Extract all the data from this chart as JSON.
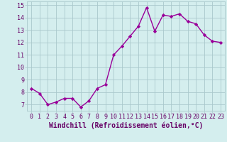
{
  "x": [
    0,
    1,
    2,
    3,
    4,
    5,
    6,
    7,
    8,
    9,
    10,
    11,
    12,
    13,
    14,
    15,
    16,
    17,
    18,
    19,
    20,
    21,
    22,
    23
  ],
  "y": [
    8.3,
    7.9,
    7.0,
    7.2,
    7.5,
    7.5,
    6.8,
    7.3,
    8.3,
    8.6,
    11.0,
    11.7,
    12.5,
    13.3,
    14.8,
    12.9,
    14.2,
    14.1,
    14.3,
    13.7,
    13.5,
    12.6,
    12.1,
    12.0
  ],
  "line_color": "#990099",
  "marker": "D",
  "marker_size": 2.2,
  "bg_color": "#d4eeee",
  "grid_color": "#aac8cc",
  "tick_color": "#660066",
  "label_color": "#660066",
  "xlabel": "Windchill (Refroidissement éolien,°C)",
  "xlabel_fontsize": 7,
  "xlim": [
    -0.5,
    23.5
  ],
  "ylim": [
    6.5,
    15.3
  ],
  "yticks": [
    7,
    8,
    9,
    10,
    11,
    12,
    13,
    14,
    15
  ],
  "xticks": [
    0,
    1,
    2,
    3,
    4,
    5,
    6,
    7,
    8,
    9,
    10,
    11,
    12,
    13,
    14,
    15,
    16,
    17,
    18,
    19,
    20,
    21,
    22,
    23
  ],
  "tick_fontsize": 6,
  "line_width": 1.0
}
